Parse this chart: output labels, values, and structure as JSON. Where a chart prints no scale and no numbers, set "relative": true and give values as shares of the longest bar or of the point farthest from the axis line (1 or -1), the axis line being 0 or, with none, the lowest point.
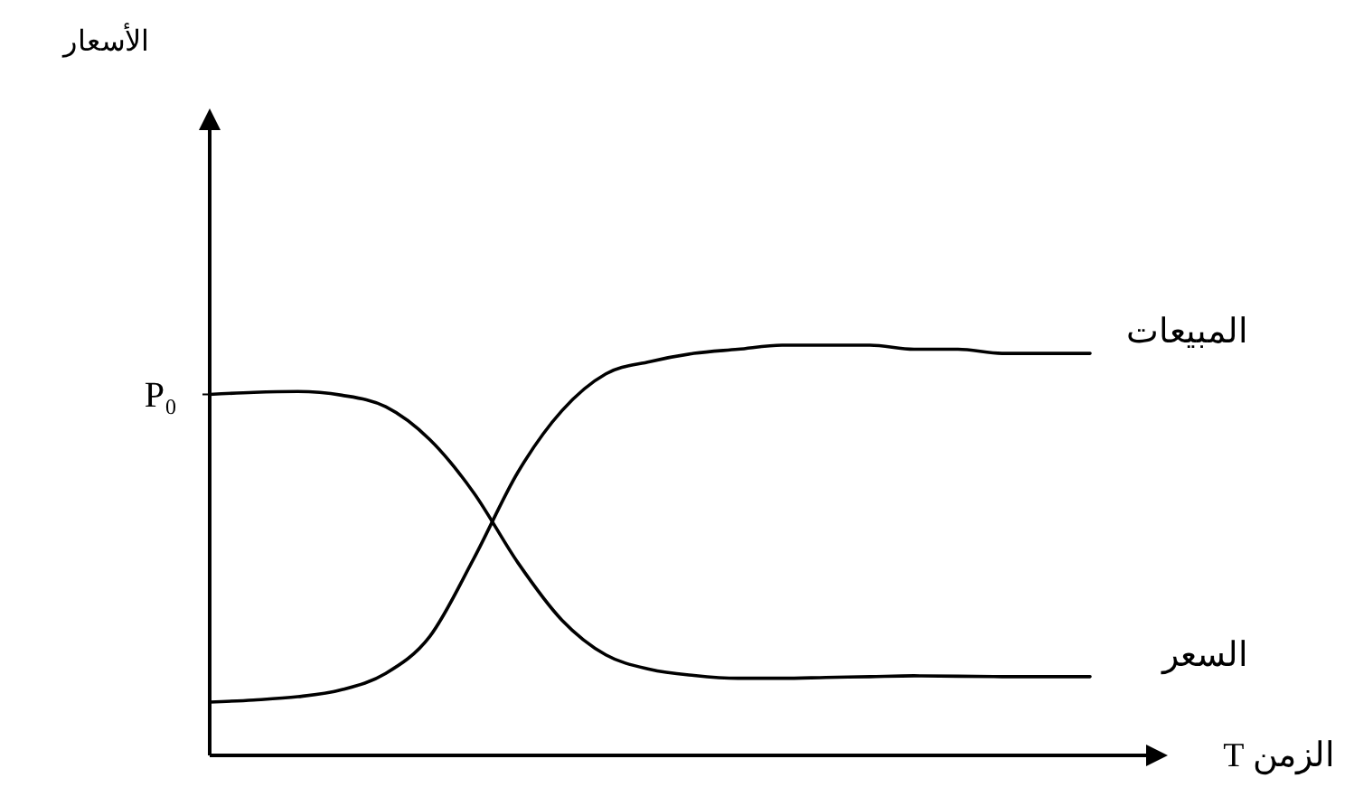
{
  "chart_data": {
    "type": "line",
    "relative": true,
    "xlabel": "الزمن T",
    "marker": "none",
    "line_style": "solid",
    "categories": [
      null,
      null,
      null,
      null,
      null,
      null,
      null,
      null,
      null,
      null,
      null,
      null,
      null,
      null,
      null,
      null,
      null,
      null,
      null,
      null,
      null
    ],
    "series": [
      {
        "name": "المبيعات",
        "color": "#000000",
        "values": [
          0.13,
          0.135,
          0.143,
          0.16,
          0.2,
          0.29,
          0.48,
          0.69,
          0.84,
          0.93,
          0.96,
          0.98,
          0.99,
          1.0,
          1.0,
          1.0,
          0.99,
          0.99,
          0.98,
          0.98,
          0.98
        ]
      },
      {
        "name": "السعر",
        "color": "#000000",
        "values": [
          0.88,
          0.885,
          0.887,
          0.878,
          0.85,
          0.77,
          0.64,
          0.47,
          0.33,
          0.245,
          0.21,
          0.195,
          0.188,
          0.188,
          0.19,
          0.192,
          0.194,
          0.193,
          0.192,
          0.192,
          0.192
        ]
      }
    ],
    "annotations": [
      "الأسعار",
      "P₀"
    ]
  }
}
